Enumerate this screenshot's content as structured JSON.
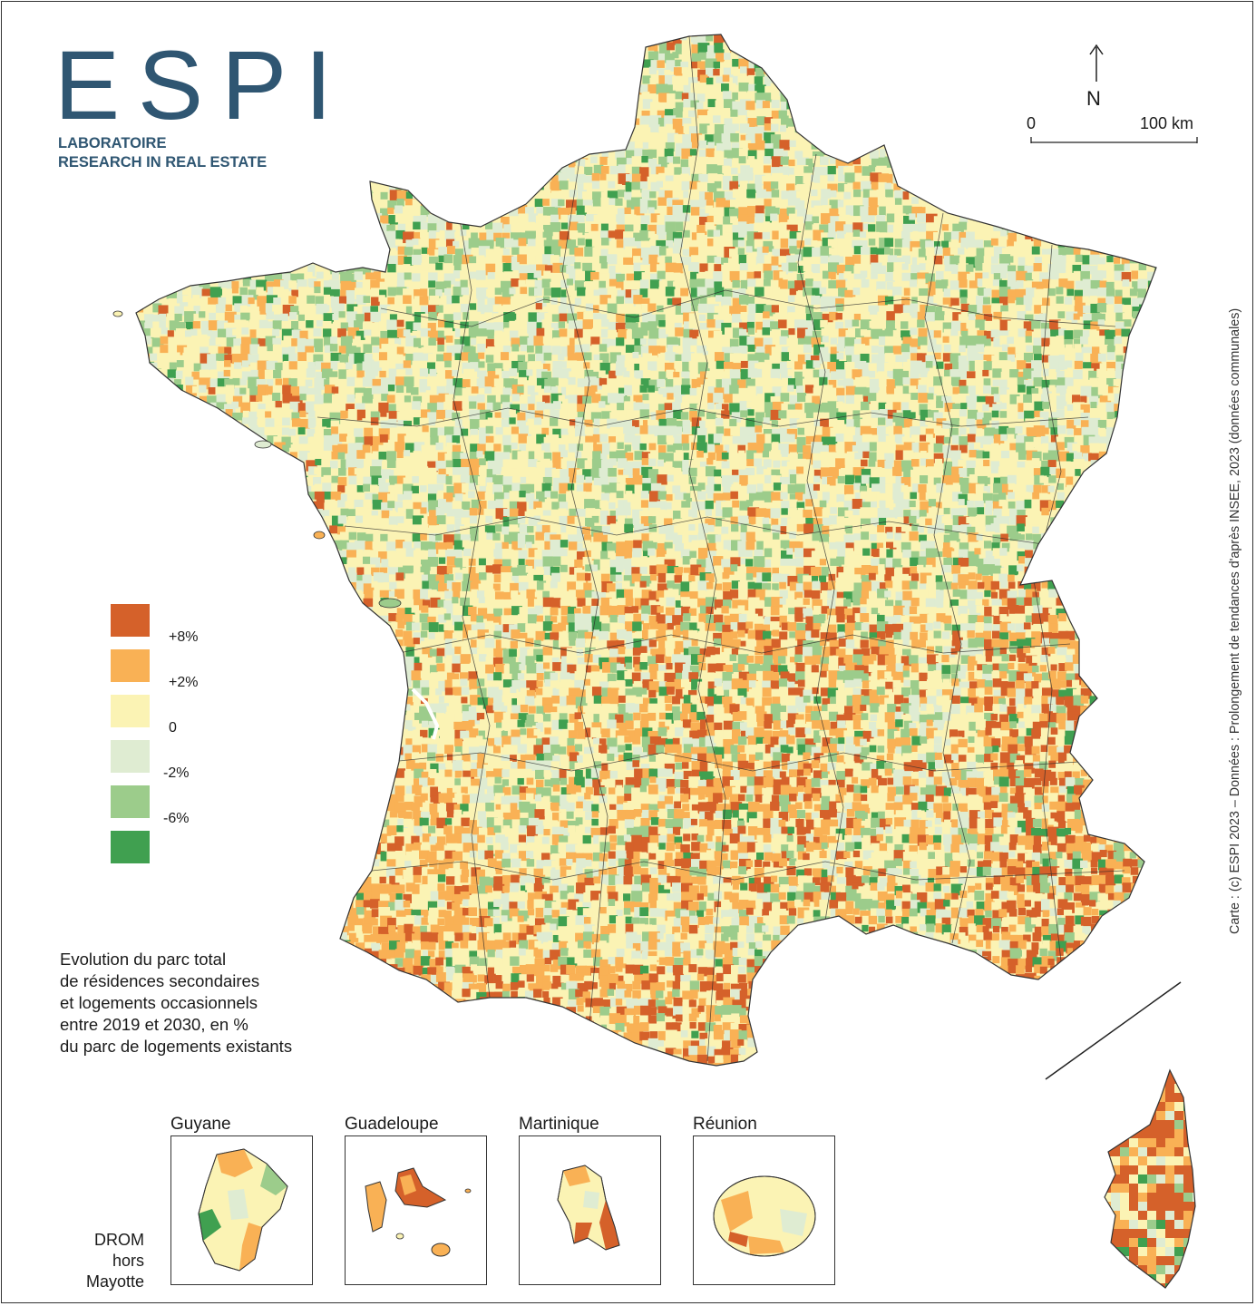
{
  "logo": {
    "word": "ESPI",
    "line1": "LABORATOIRE",
    "line2": "RESEARCH IN REAL ESTATE"
  },
  "compass": {
    "north": "N"
  },
  "scale": {
    "start": "0",
    "end": "100 km"
  },
  "credit": "Carte : (c) ESPI 2023 – Données : Prolongement de tendances d'après INSEE, 2023 (données communales)",
  "legend": {
    "classes": [
      {
        "color": "#d5612a",
        "label": ""
      },
      {
        "color": "#f9b155",
        "label": "+8%"
      },
      {
        "color": "#fbf3b4",
        "label": "+2%"
      },
      {
        "color": "#dfecd2",
        "label": "0"
      },
      {
        "color": "#9ccc8b",
        "label": "-2%"
      },
      {
        "color": "#40a050",
        "label": "-6%"
      }
    ]
  },
  "title": {
    "line1": "Evolution du parc total",
    "line2": "de résidences secondaires",
    "line3": "et logements occasionnels",
    "line4": "entre 2019 et 2030, en %",
    "line5": "du parc de logements existants"
  },
  "insets": {
    "guyane": "Guyane",
    "guadeloupe": "Guadeloupe",
    "martinique": "Martinique",
    "reunion": "Réunion"
  },
  "drom": {
    "line1": "DROM",
    "line2": "hors",
    "line3": "Mayotte"
  }
}
